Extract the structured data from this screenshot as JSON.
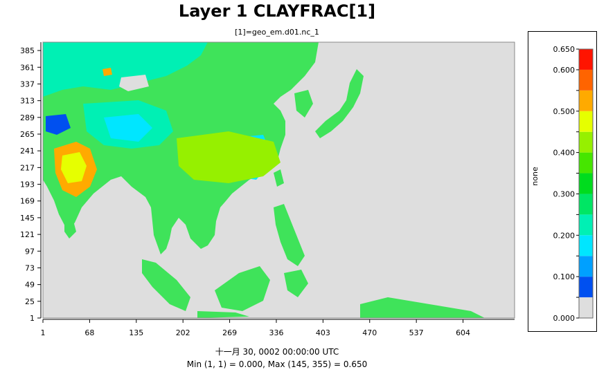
{
  "chart_data": {
    "type": "heatmap",
    "title": "Layer 1 CLAYFRAC[1]",
    "subtitle": "[1]=geo_em.d01.nc_1",
    "x_ticks": [
      1,
      68,
      135,
      202,
      269,
      336,
      403,
      470,
      537,
      604
    ],
    "y_ticks": [
      1,
      25,
      49,
      73,
      97,
      121,
      145,
      169,
      193,
      217,
      241,
      265,
      289,
      313,
      337,
      361,
      385
    ],
    "x_range": [
      1,
      678
    ],
    "y_range": [
      1,
      397
    ],
    "colorbar": {
      "unit": "none",
      "labels": [
        "0.000",
        "0.100",
        "0.200",
        "0.300",
        "0.400",
        "0.500",
        "0.600",
        "0.650"
      ],
      "label_values": [
        0,
        0.1,
        0.2,
        0.3,
        0.4,
        0.5,
        0.6,
        0.65
      ],
      "bins": [
        0,
        0.05,
        0.1,
        0.15,
        0.2,
        0.25,
        0.3,
        0.35,
        0.4,
        0.45,
        0.5,
        0.55,
        0.6,
        0.65
      ],
      "colors": [
        "#dedede",
        "#0050f0",
        "#00a0ff",
        "#00e6ff",
        "#00f0b4",
        "#00e664",
        "#00dc1e",
        "#46e600",
        "#96f000",
        "#e6ff00",
        "#ffaa00",
        "#ff6400",
        "#ff1400"
      ]
    },
    "min": {
      "location": "(1, 1)",
      "value": 0.0
    },
    "max": {
      "location": "(145, 355)",
      "value": 0.65
    },
    "footer_date": "十一月 30, 0002 00:00:00 UTC",
    "footer_minmax": "Min (1, 1) = 0.000, Max (145, 355) = 0.650"
  }
}
